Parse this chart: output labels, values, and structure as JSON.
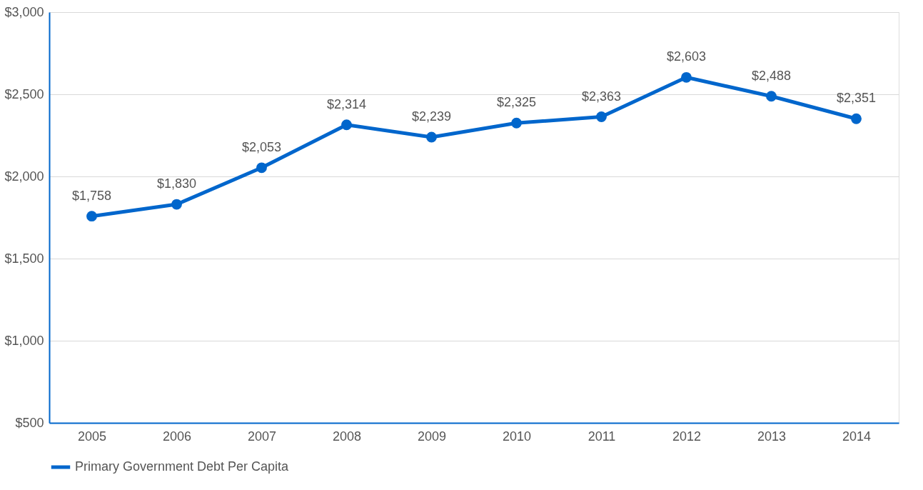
{
  "chart_data": {
    "type": "line",
    "categories": [
      "2005",
      "2006",
      "2007",
      "2008",
      "2009",
      "2010",
      "2011",
      "2012",
      "2013",
      "2014"
    ],
    "series": [
      {
        "name": "Primary Government Debt Per Capita",
        "color": "#0066cc",
        "values": [
          1758,
          1830,
          2053,
          2314,
          2239,
          2325,
          2363,
          2603,
          2488,
          2351
        ]
      }
    ],
    "ylim": [
      500,
      3000
    ],
    "yticks": [
      {
        "value": 500,
        "label": "$500"
      },
      {
        "value": 1000,
        "label": "$1,000"
      },
      {
        "value": 1500,
        "label": "$1,500"
      },
      {
        "value": 2000,
        "label": "$2,000"
      },
      {
        "value": 2500,
        "label": "$2,500"
      },
      {
        "value": 3000,
        "label": "$3,000"
      }
    ],
    "value_labels": [
      [
        "$1,758",
        "$1,830",
        "$2,053",
        "$2,314",
        "$2,239",
        "$2,325",
        "$2,363",
        "$2,603",
        "$2,488",
        "$2,351"
      ]
    ],
    "grid": "y",
    "legend": "bottom",
    "marker": "circle",
    "line_style": "solid"
  }
}
